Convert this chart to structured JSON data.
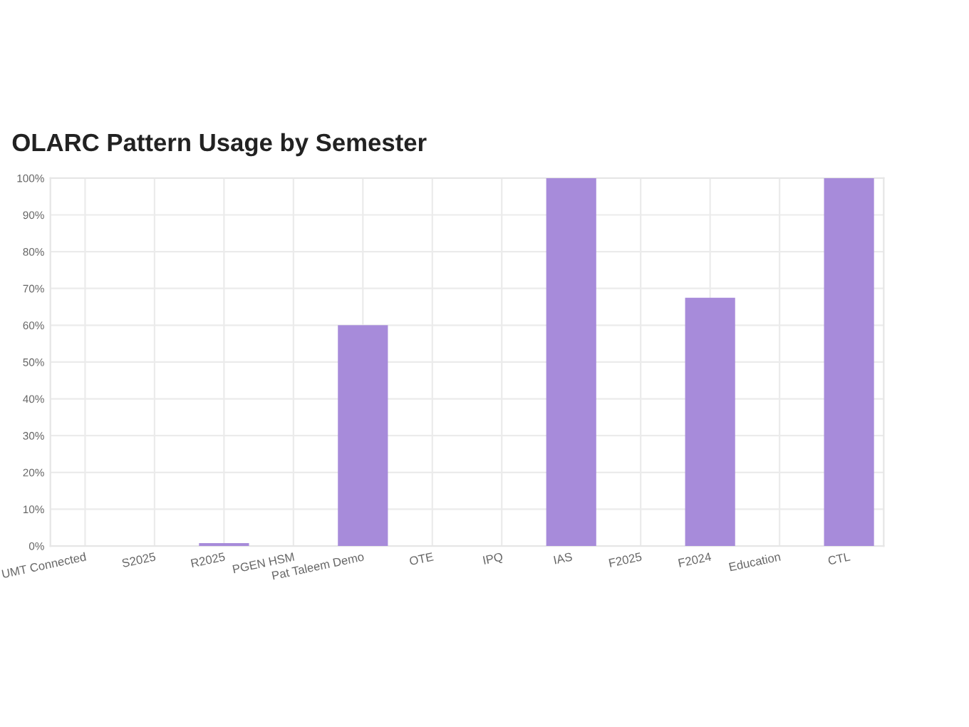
{
  "chart_data": {
    "type": "bar",
    "title": "OLARC Pattern Usage by Semester",
    "categories": [
      "UMT Connected",
      "S2025",
      "R2025",
      "PGEN HSM",
      "Pat Taleem Demo",
      "OTE",
      "IPQ",
      "IAS",
      "F2025",
      "F2024",
      "Education",
      "CTL"
    ],
    "values": [
      0,
      0,
      0.8,
      0,
      60,
      0,
      0,
      100,
      0,
      67.5,
      0,
      100
    ],
    "color": "#a78bda",
    "ylim": [
      0,
      100
    ],
    "yticks": [
      {
        "value": 0,
        "label": "0%"
      },
      {
        "value": 10,
        "label": "10%"
      },
      {
        "value": 20,
        "label": "20%"
      },
      {
        "value": 30,
        "label": "30%"
      },
      {
        "value": 40,
        "label": "40%"
      },
      {
        "value": 50,
        "label": "50%"
      },
      {
        "value": 60,
        "label": "60%"
      },
      {
        "value": 70,
        "label": "70%"
      },
      {
        "value": 80,
        "label": "80%"
      },
      {
        "value": 90,
        "label": "90%"
      },
      {
        "value": 100,
        "label": "100%"
      }
    ],
    "grid": true
  }
}
